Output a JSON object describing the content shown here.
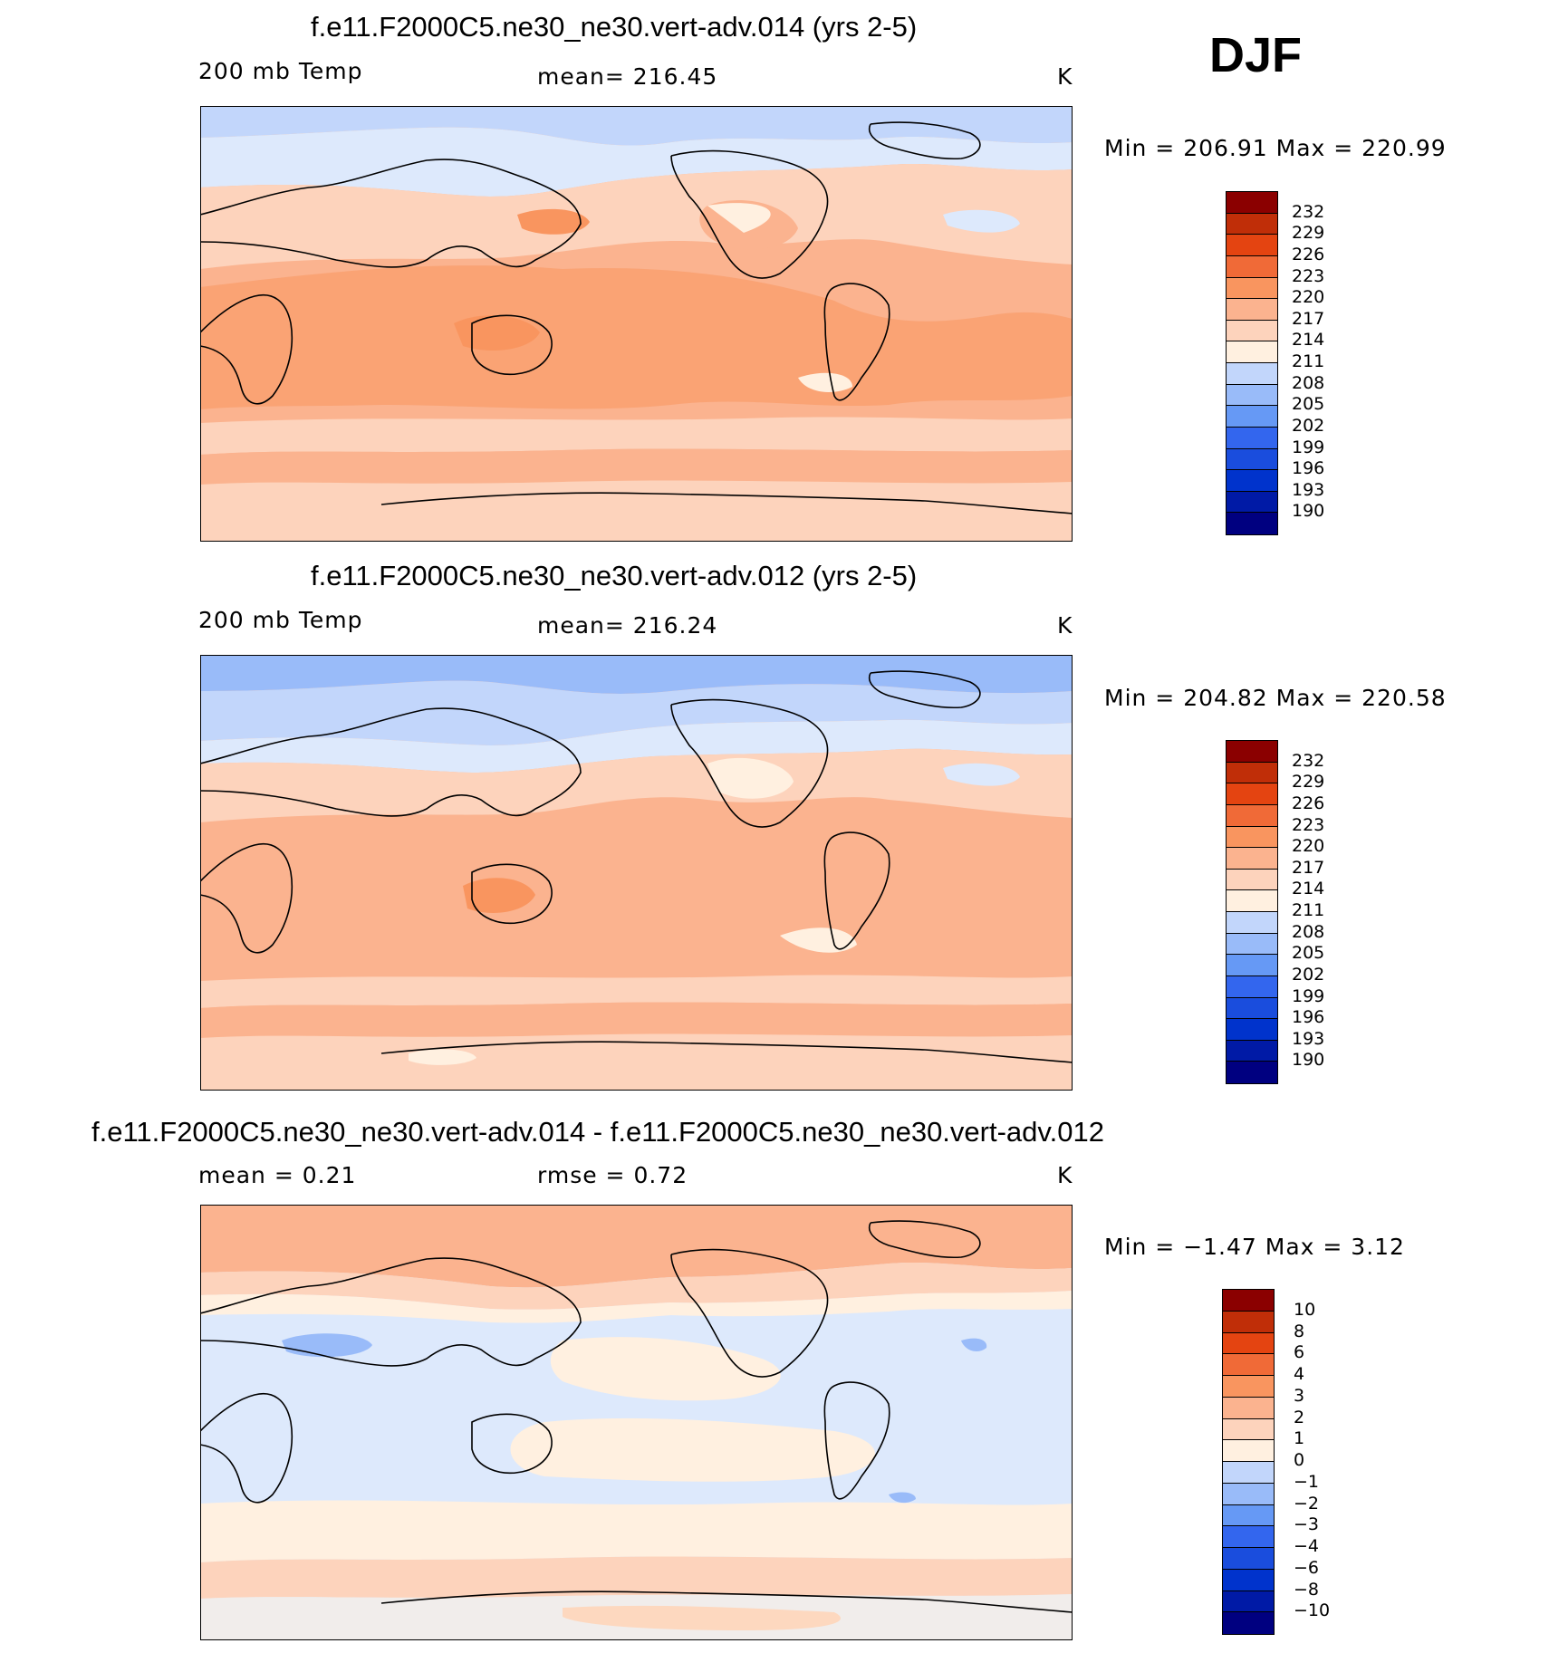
{
  "season": "DJF",
  "colors": {
    "abs": [
      "#000080",
      "#001aa6",
      "#0033cc",
      "#1a4ddd",
      "#3366ee",
      "#6699f5",
      "#99bbf9",
      "#c2d6fb",
      "#dde9fc",
      "#fff0e0",
      "#fdd3bc",
      "#fbb38f",
      "#f9955f",
      "#f06a37",
      "#e44411",
      "#c02e08",
      "#8b0000"
    ],
    "diff": [
      "#000080",
      "#001aa6",
      "#0033cc",
      "#1a4ddd",
      "#3366ee",
      "#6699f5",
      "#99bbf9",
      "#c2d6fb",
      "#dde9fc",
      "#fff0e0",
      "#fdd3bc",
      "#fbb38f",
      "#f9955f",
      "#f06a37",
      "#e44411",
      "#c02e08",
      "#8b0000"
    ]
  },
  "chart_data": [
    {
      "type": "heatmap",
      "title": "f.e11.F2000C5.ne30_ne30.vert-adv.014 (yrs 2-5)",
      "left_label": "200 mb Temp",
      "center_label": "mean=  216.45",
      "units": "K",
      "minmax": "Min  =  206.91  Max  =  220.99",
      "colorbar_levels": [
        "232",
        "229",
        "226",
        "223",
        "220",
        "217",
        "214",
        "211",
        "208",
        "205",
        "202",
        "199",
        "196",
        "193",
        "190"
      ]
    },
    {
      "type": "heatmap",
      "title": "f.e11.F2000C5.ne30_ne30.vert-adv.012 (yrs 2-5)",
      "left_label": "200 mb Temp",
      "center_label": "mean=  216.24",
      "units": "K",
      "minmax": "Min  =  204.82  Max  =  220.58",
      "colorbar_levels": [
        "232",
        "229",
        "226",
        "223",
        "220",
        "217",
        "214",
        "211",
        "208",
        "205",
        "202",
        "199",
        "196",
        "193",
        "190"
      ]
    },
    {
      "type": "heatmap",
      "title": "f.e11.F2000C5.ne30_ne30.vert-adv.014 - f.e11.F2000C5.ne30_ne30.vert-adv.012",
      "left_label": "mean  =     0.21",
      "center_label": "rmse  =     0.72",
      "units": "K",
      "minmax": "Min  =    −1.47  Max  =     3.12",
      "colorbar_levels": [
        "10",
        "8",
        "6",
        "4",
        "3",
        "2",
        "1",
        "0",
        "−1",
        "−2",
        "−3",
        "−4",
        "−6",
        "−8",
        "−10"
      ]
    }
  ]
}
